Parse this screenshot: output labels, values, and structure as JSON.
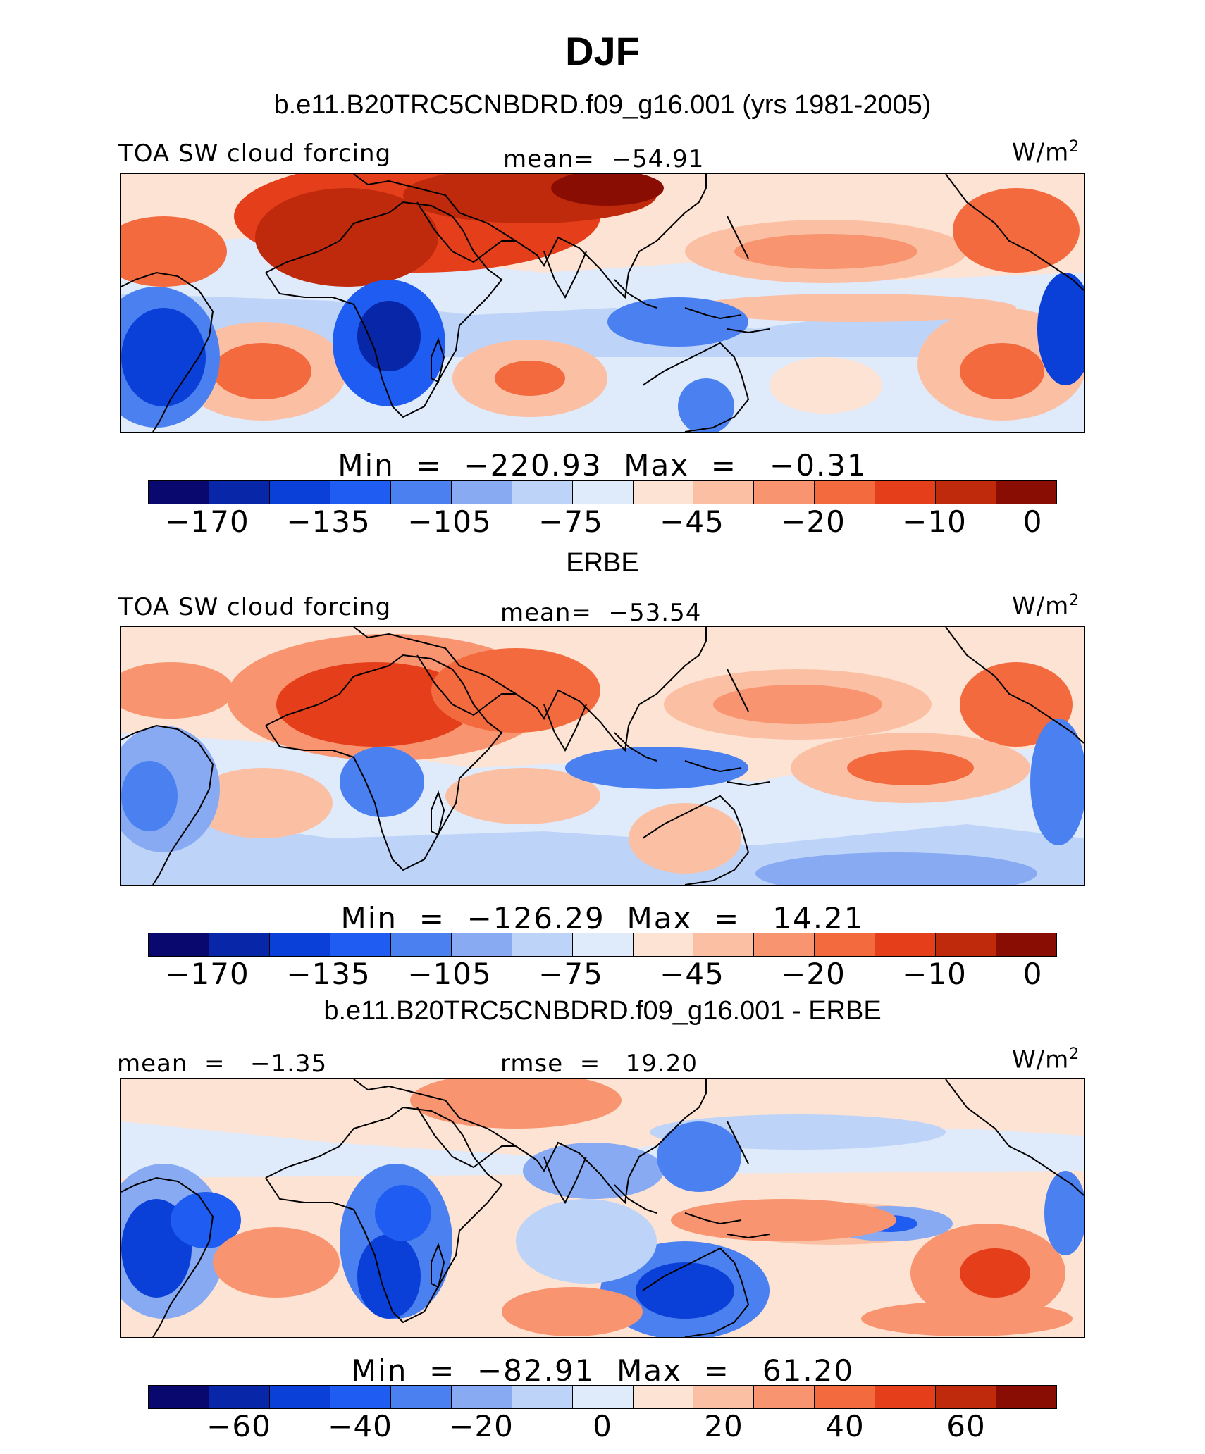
{
  "figure_title": "DJF",
  "palette": {
    "levels_colors": [
      "#08086e",
      "#0826a8",
      "#0a3fd8",
      "#1f5cf2",
      "#4a80f0",
      "#87aaf2",
      "#bdd3f8",
      "#dfeafb",
      "#fde3d3",
      "#fbc0a4",
      "#f89570",
      "#f26a3e",
      "#e43e1a",
      "#c02a0c",
      "#8a0d04"
    ]
  },
  "panels": [
    {
      "title": "b.e11.B20TRC5CNBDRD.f09_g16.001 (yrs 1981-2005)",
      "left_label": "TOA SW cloud forcing",
      "center_label": "mean=  −54.91",
      "unit": "W/m",
      "unit_sup": "2",
      "minmax": "Min  =  −220.93  Max  =   −0.31",
      "tick_labels": [
        "−170",
        "−135",
        "−105",
        "−75",
        "−45",
        "−20",
        "−10",
        "0"
      ]
    },
    {
      "title": "ERBE",
      "left_label": "TOA SW cloud forcing",
      "center_label": "mean=  −53.54",
      "unit": "W/m",
      "unit_sup": "2",
      "minmax": "Min  =  −126.29  Max  =   14.21",
      "tick_labels": [
        "−170",
        "−135",
        "−105",
        "−75",
        "−45",
        "−20",
        "−10",
        "0"
      ]
    },
    {
      "title": "b.e11.B20TRC5CNBDRD.f09_g16.001 - ERBE",
      "left_label": "mean  =   −1.35",
      "center_label": "rmse  =   19.20",
      "unit": "W/m",
      "unit_sup": "2",
      "minmax": "Min  =  −82.91  Max  =   61.20",
      "tick_labels": [
        "−60",
        "−40",
        "−20",
        "0",
        "20",
        "40",
        "60"
      ]
    }
  ],
  "chart_data": [
    {
      "type": "heatmap",
      "title": "b.e11.B20TRC5CNBDRD.f09_g16.001 (yrs 1981-2005)",
      "variable": "TOA SW cloud forcing",
      "units": "W/m2",
      "mean": -54.91,
      "min": -220.93,
      "max": -0.31,
      "colorbar_ticks": [
        -170,
        -135,
        -105,
        -75,
        -45,
        -20,
        -10,
        0
      ],
      "colors": 15
    },
    {
      "type": "heatmap",
      "title": "ERBE",
      "variable": "TOA SW cloud forcing",
      "units": "W/m2",
      "mean": -53.54,
      "min": -126.29,
      "max": 14.21,
      "colorbar_ticks": [
        -170,
        -135,
        -105,
        -75,
        -45,
        -20,
        -10,
        0
      ],
      "colors": 15
    },
    {
      "type": "heatmap",
      "title": "b.e11.B20TRC5CNBDRD.f09_g16.001 - ERBE",
      "units": "W/m2",
      "mean": -1.35,
      "rmse": 19.2,
      "min": -82.91,
      "max": 61.2,
      "colorbar_ticks": [
        -60,
        -40,
        -20,
        0,
        20,
        40,
        60
      ],
      "colors": 15
    }
  ]
}
